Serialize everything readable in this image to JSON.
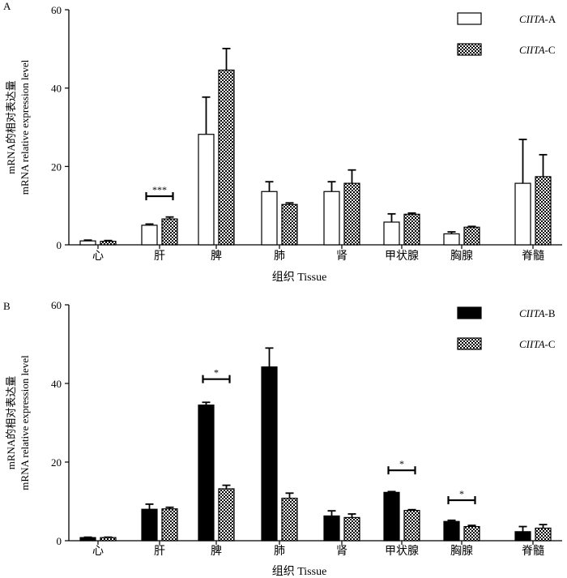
{
  "chart_data": [
    {
      "panel_label": "A",
      "type": "bar",
      "categories": [
        "心",
        "肝",
        "脾",
        "肺",
        "肾",
        "甲状腺",
        "胸腺",
        "脊髓"
      ],
      "xlabel": "组织 Tissue",
      "ylabel_zh": "mRNA的相对表达量",
      "ylabel_en": "mRNA relative expression level",
      "ylim": [
        0,
        60
      ],
      "yticks": [
        0,
        20,
        40,
        60
      ],
      "grid": false,
      "legend_position": "top-right",
      "series": [
        {
          "name_italic": "CIITA",
          "name_suffix": "-A",
          "pattern": "open",
          "values": [
            1.0,
            5.0,
            28.2,
            13.6,
            13.6,
            5.8,
            2.8,
            15.7
          ],
          "errors": [
            0.2,
            0.3,
            9.5,
            2.5,
            2.5,
            2.1,
            0.5,
            11.2
          ]
        },
        {
          "name_italic": "CIITA",
          "name_suffix": "-C",
          "pattern": "checker",
          "values": [
            0.9,
            6.6,
            44.6,
            10.3,
            15.7,
            7.8,
            4.5,
            17.4
          ],
          "errors": [
            0.2,
            0.5,
            5.5,
            0.4,
            3.4,
            0.3,
            0.2,
            5.6
          ]
        }
      ],
      "significance": [
        {
          "category_index": 1,
          "label": "***",
          "y": 12.4
        }
      ]
    },
    {
      "panel_label": "B",
      "type": "bar",
      "categories": [
        "心",
        "肝",
        "脾",
        "肺",
        "肾",
        "甲状腺",
        "胸腺",
        "脊髓"
      ],
      "xlabel": "组织 Tissue",
      "ylabel_zh": "mRNA的相对表达量",
      "ylabel_en": "mRNA relative expression level",
      "ylim": [
        0,
        60
      ],
      "yticks": [
        0,
        20,
        40,
        60
      ],
      "grid": false,
      "legend_position": "top-right",
      "series": [
        {
          "name_italic": "CIITA",
          "name_suffix": "-B",
          "pattern": "solid",
          "values": [
            0.8,
            8.0,
            34.5,
            44.2,
            6.3,
            12.3,
            4.9,
            2.3
          ],
          "errors": [
            0.1,
            1.3,
            0.7,
            4.8,
            1.3,
            0.2,
            0.3,
            1.3
          ]
        },
        {
          "name_italic": "CIITA",
          "name_suffix": "-C",
          "pattern": "checker",
          "values": [
            0.8,
            8.1,
            13.2,
            10.8,
            5.9,
            7.7,
            3.6,
            3.2
          ],
          "errors": [
            0.1,
            0.4,
            0.9,
            1.3,
            0.9,
            0.2,
            0.3,
            0.9
          ]
        }
      ],
      "significance": [
        {
          "category_index": 2,
          "label": "*",
          "y": 41.1
        },
        {
          "category_index": 5,
          "label": "*",
          "y": 17.9
        },
        {
          "category_index": 6,
          "label": "*",
          "y": 10.3
        }
      ]
    }
  ]
}
